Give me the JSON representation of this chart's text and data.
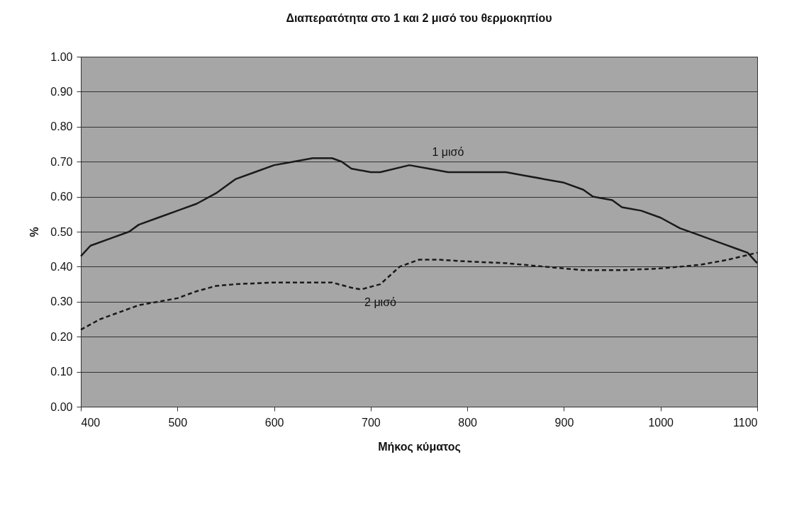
{
  "chart_data": {
    "type": "line",
    "title": "Διαπερατότητα στο 1 και 2 μισό του θερμοκηπίου",
    "xlabel": "Μήκος κύματος",
    "ylabel": "%",
    "xlim": [
      400,
      1100
    ],
    "xticks": [
      400,
      500,
      600,
      700,
      800,
      900,
      1000,
      1100
    ],
    "ylim": [
      0,
      1
    ],
    "yticks": [
      {
        "value": 0,
        "label": "0.00"
      },
      {
        "value": 0.1,
        "label": "0.10"
      },
      {
        "value": 0.2,
        "label": "0.20"
      },
      {
        "value": 0.3,
        "label": "0.30"
      },
      {
        "value": 0.4,
        "label": "0.40"
      },
      {
        "value": 0.5,
        "label": "0.50"
      },
      {
        "value": 0.6,
        "label": "0.60"
      },
      {
        "value": 0.7,
        "label": "0.70"
      },
      {
        "value": 0.8,
        "label": "0.80"
      },
      {
        "value": 0.9,
        "label": "0.90"
      },
      {
        "value": 1,
        "label": "1.00"
      }
    ],
    "grid": "y",
    "legend": false,
    "marker": "none",
    "series": [
      {
        "name": "1 μισό",
        "color": "#1a1a1a",
        "line_style": "solid",
        "x": [
          400,
          410,
          430,
          450,
          460,
          480,
          500,
          520,
          540,
          560,
          580,
          600,
          620,
          640,
          660,
          670,
          680,
          700,
          710,
          740,
          760,
          780,
          800,
          820,
          840,
          860,
          880,
          900,
          920,
          930,
          950,
          960,
          980,
          1000,
          1020,
          1040,
          1060,
          1080,
          1090,
          1100
        ],
        "values": [
          0.43,
          0.46,
          0.48,
          0.5,
          0.52,
          0.54,
          0.56,
          0.58,
          0.61,
          0.65,
          0.67,
          0.69,
          0.7,
          0.71,
          0.71,
          0.7,
          0.68,
          0.67,
          0.67,
          0.69,
          0.68,
          0.67,
          0.67,
          0.67,
          0.67,
          0.66,
          0.65,
          0.64,
          0.62,
          0.6,
          0.59,
          0.57,
          0.56,
          0.54,
          0.51,
          0.49,
          0.47,
          0.45,
          0.44,
          0.41
        ]
      },
      {
        "name": "2 μισό",
        "color": "#1a1a1a",
        "line_style": "dashed",
        "x": [
          400,
          420,
          440,
          460,
          480,
          500,
          520,
          540,
          560,
          600,
          640,
          660,
          680,
          690,
          710,
          730,
          750,
          770,
          800,
          840,
          880,
          920,
          960,
          1000,
          1040,
          1070,
          1100
        ],
        "values": [
          0.22,
          0.25,
          0.27,
          0.29,
          0.3,
          0.31,
          0.33,
          0.345,
          0.35,
          0.355,
          0.355,
          0.355,
          0.34,
          0.335,
          0.35,
          0.4,
          0.42,
          0.42,
          0.415,
          0.41,
          0.4,
          0.39,
          0.39,
          0.395,
          0.405,
          0.42,
          0.44
        ]
      }
    ]
  }
}
